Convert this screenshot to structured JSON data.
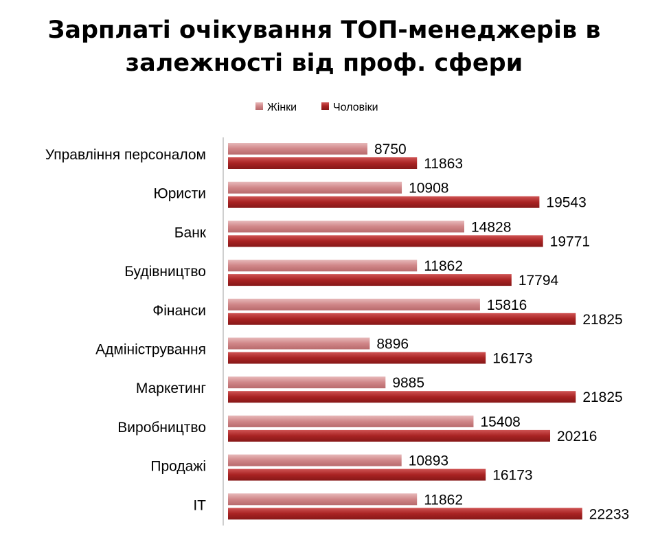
{
  "chart_data": {
    "type": "bar",
    "orientation": "horizontal",
    "title_lines": [
      "Зарплаті очікування ТОП-менеджерів в",
      "залежності від проф. сфери"
    ],
    "legend_position": "top",
    "categories": [
      "Управління персоналом",
      "Юристи",
      "Банк",
      "Будівництво",
      "Фінанси",
      "Адміністрування",
      "Маркетинг",
      "Виробництво",
      "Продажі",
      "IT"
    ],
    "series": [
      {
        "name": "Жінки",
        "color": "#d38f91",
        "values": [
          8750,
          10908,
          14828,
          11862,
          15816,
          8896,
          9885,
          15408,
          10893,
          11862
        ]
      },
      {
        "name": "Чоловіки",
        "color": "#b52e2e",
        "values": [
          11863,
          19543,
          19771,
          17794,
          21825,
          16173,
          21825,
          20216,
          16173,
          22233
        ]
      }
    ],
    "xlim": [
      0,
      22500
    ],
    "grid": false,
    "data_labels": true
  }
}
